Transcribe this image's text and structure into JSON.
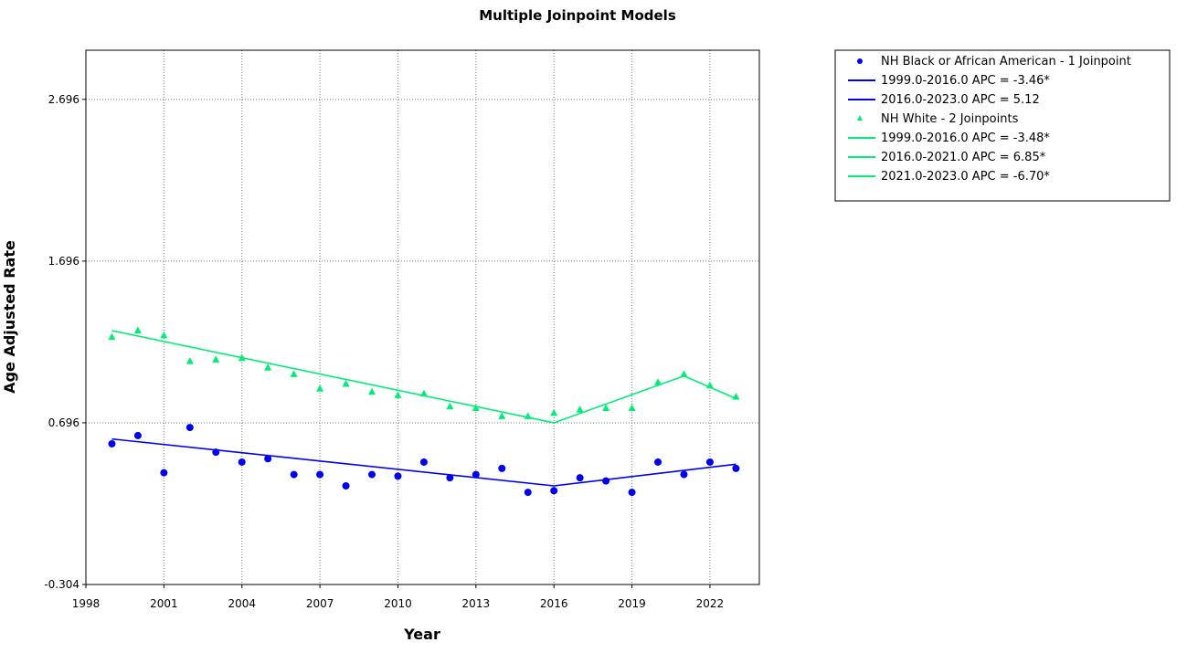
{
  "chart_data": {
    "type": "scatter",
    "title": "Multiple Joinpoint Models",
    "xlabel": "Year",
    "ylabel": "Age Adjusted Rate",
    "xlim": [
      1998,
      2023.9
    ],
    "ylim": [
      -0.304,
      3.0
    ],
    "x_ticks": [
      1998,
      2001,
      2004,
      2007,
      2010,
      2013,
      2016,
      2019,
      2022
    ],
    "x_tick_labels": [
      "1998",
      "2001",
      "2004",
      "2007",
      "2010",
      "2013",
      "2016",
      "2019",
      "2022"
    ],
    "y_ticks": [
      -0.304,
      0.696,
      1.696,
      2.696
    ],
    "y_tick_labels": [
      "-0.304",
      "0.696",
      "1.696",
      "2.696"
    ],
    "grid": true,
    "legend_position": "right",
    "series": [
      {
        "name": "NH Black or African American - 1 Joinpoint",
        "marker": "circle",
        "color": "#0000ee",
        "x": [
          1999,
          2000,
          2001,
          2002,
          2003,
          2004,
          2005,
          2006,
          2007,
          2008,
          2009,
          2010,
          2011,
          2012,
          2013,
          2014,
          2015,
          2016,
          2017,
          2018,
          2019,
          2020,
          2021,
          2022,
          2023
        ],
        "y": [
          0.566,
          0.617,
          0.387,
          0.667,
          0.514,
          0.453,
          0.474,
          0.376,
          0.376,
          0.306,
          0.376,
          0.366,
          0.453,
          0.356,
          0.376,
          0.414,
          0.266,
          0.276,
          0.356,
          0.336,
          0.266,
          0.453,
          0.376,
          0.453,
          0.414
        ],
        "fit_segments": [
          {
            "label": "1999.0-2016.0 APC  =  -3.46*",
            "x": [
              1999,
              2016
            ],
            "y": [
              0.596,
              0.306
            ]
          },
          {
            "label": "2016.0-2023.0 APC  =  5.12",
            "x": [
              2016,
              2023
            ],
            "y": [
              0.306,
              0.44
            ]
          }
        ]
      },
      {
        "name": "NH White - 2 Joinpoints",
        "marker": "triangle",
        "color": "#00ee76",
        "x": [
          1999,
          2000,
          2001,
          2002,
          2003,
          2004,
          2005,
          2006,
          2007,
          2008,
          2009,
          2010,
          2011,
          2012,
          2013,
          2014,
          2015,
          2016,
          2017,
          2018,
          2019,
          2020,
          2021,
          2022,
          2023
        ],
        "y": [
          1.226,
          1.266,
          1.236,
          1.076,
          1.086,
          1.096,
          1.036,
          0.996,
          0.906,
          0.936,
          0.886,
          0.866,
          0.876,
          0.796,
          0.786,
          0.736,
          0.736,
          0.756,
          0.776,
          0.786,
          0.786,
          0.946,
          0.996,
          0.926,
          0.856
        ],
        "fit_segments": [
          {
            "label": "1999.0-2016.0 APC  =  -3.48*",
            "x": [
              1999,
              2016
            ],
            "y": [
              1.266,
              0.696
            ]
          },
          {
            "label": "2016.0-2021.0 APC  =  6.85*",
            "x": [
              2016,
              2021
            ],
            "y": [
              0.696,
              0.986
            ]
          },
          {
            "label": "2021.0-2023.0 APC  =  -6.70*",
            "x": [
              2021,
              2023
            ],
            "y": [
              0.986,
              0.846
            ]
          }
        ]
      }
    ]
  }
}
